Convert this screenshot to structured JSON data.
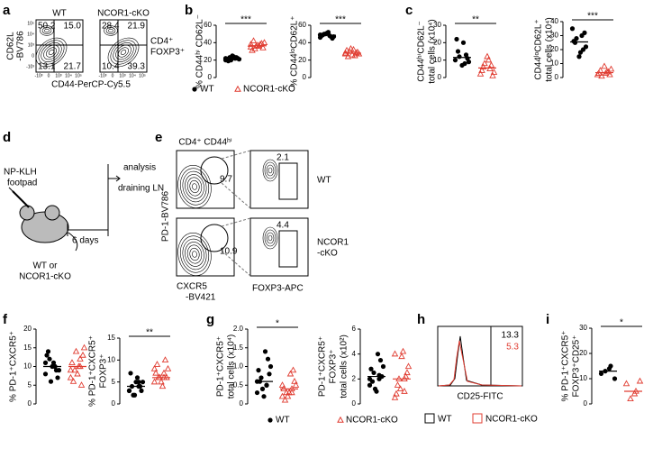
{
  "panel_labels": [
    "a",
    "b",
    "c",
    "d",
    "e",
    "f",
    "g",
    "h",
    "i"
  ],
  "groups": [
    "WT",
    "NCOR1-cKO"
  ],
  "colors": [
    "#000000",
    "#e03c31"
  ],
  "a": {
    "columns": [
      "WT",
      "NCOR1-cKO"
    ],
    "y_label": [
      "CD62L",
      "-BV786"
    ],
    "x_label": "CD44-PerCP-Cy5.5",
    "gate_label": [
      "CD4⁺",
      "FOXP3⁺"
    ],
    "quadrants": [
      [
        "50.2",
        "15.0",
        "13.1",
        "21.7"
      ],
      [
        "28.4",
        "21.9",
        "10.4",
        "39.3"
      ]
    ],
    "axis_ticks": [
      "10⁵",
      "10⁴",
      "10³",
      "0",
      "-10³"
    ]
  },
  "d": {
    "injection": [
      "NP-KLH",
      "footpad"
    ],
    "analysis": [
      "analysis",
      "draining LN"
    ],
    "interval": "6 days",
    "mice": [
      "WT or",
      "NCOR1-cKO"
    ]
  },
  "e": {
    "header": "CD4⁺ CD44ʰⁱ",
    "gates": [
      [
        "9.7",
        "2.1"
      ],
      [
        "10.9",
        "4.4"
      ]
    ],
    "rows": [
      [
        "WT"
      ],
      [
        "NCOR1",
        "-cKO"
      ]
    ],
    "y_label": "PD-1-BV786",
    "x_label_left": [
      "CXCR5",
      "-BV421"
    ],
    "x_label_right": "FOXP3-APC"
  },
  "h": {
    "values": [
      "13.3",
      "5.3"
    ],
    "x_label": "CD25-FITC"
  },
  "dotplots": [
    {
      "y_label": [
        "% CD44ʰⁱ CD62L⁻"
      ],
      "ylim": [
        0,
        60
      ],
      "yticks": [
        0,
        20,
        40,
        60
      ],
      "significance": "***",
      "series": [
        {
          "values": [
            20,
            22,
            23,
            21,
            24,
            19,
            22,
            25,
            21,
            23,
            20,
            22
          ]
        },
        {
          "values": [
            35,
            38,
            33,
            40,
            36,
            42,
            34,
            37,
            31,
            39,
            36,
            38
          ]
        }
      ]
    },
    {
      "y_label": [
        "% CD44ˡᵒCD62L⁺"
      ],
      "ylim": [
        0,
        60
      ],
      "yticks": [
        0,
        20,
        40,
        60
      ],
      "significance": "***",
      "series": [
        {
          "values": [
            46,
            48,
            50,
            47,
            52,
            49,
            45,
            51,
            48,
            47,
            50,
            49
          ]
        },
        {
          "values": [
            28,
            25,
            30,
            27,
            32,
            24,
            29,
            26,
            31,
            28,
            33,
            27
          ]
        }
      ]
    },
    {
      "y_label": [
        "CD44ʰⁱCD62L⁻",
        "total cells (x10⁴)"
      ],
      "ylim": [
        0,
        30
      ],
      "yticks": [
        0,
        10,
        20,
        30
      ],
      "significance": "**",
      "series": [
        {
          "values": [
            10,
            8,
            12,
            9,
            20,
            15,
            11,
            7,
            22,
            13
          ]
        },
        {
          "values": [
            2,
            5,
            8,
            3,
            10,
            6,
            1,
            12,
            4,
            7
          ]
        }
      ]
    },
    {
      "y_label": [
        "CD44ˡᵒCD62L⁺",
        "total cells (x10⁴)"
      ],
      "ylim": [
        0,
        40
      ],
      "yticks": [
        0,
        10,
        20,
        30,
        40
      ],
      "significance": "***",
      "series": [
        {
          "values": [
            35,
            30,
            28,
            22,
            18,
            25,
            32,
            15,
            26,
            20
          ]
        },
        {
          "values": [
            2,
            4,
            1,
            6,
            3,
            5,
            2,
            8,
            3,
            4
          ]
        }
      ]
    },
    {
      "y_label": [
        "% PD-1⁺CXCR5⁺"
      ],
      "ylim": [
        0,
        20
      ],
      "yticks": [
        0,
        5,
        10,
        15,
        20
      ],
      "series": [
        {
          "values": [
            8,
            10,
            12,
            9,
            11,
            14,
            7,
            10,
            13,
            9,
            6,
            11,
            10
          ]
        },
        {
          "values": [
            7,
            12,
            9,
            15,
            10,
            6,
            13,
            8,
            11,
            5,
            14,
            9,
            10
          ]
        }
      ]
    },
    {
      "y_label": [
        "% PD-1⁺CXCR5⁺",
        "FOXP3⁺"
      ],
      "ylim": [
        0,
        15
      ],
      "yticks": [
        0,
        5,
        10,
        15
      ],
      "significance": "**",
      "series": [
        {
          "values": [
            3,
            4,
            2,
            5,
            6,
            4,
            3,
            5,
            7,
            4,
            2,
            3,
            5
          ]
        },
        {
          "values": [
            5,
            7,
            6,
            8,
            4,
            9,
            6,
            5,
            7,
            10,
            6,
            8,
            6
          ]
        }
      ]
    },
    {
      "y_label": [
        "PD-1⁺CXCR5⁺",
        "total cells (x10⁴)"
      ],
      "ylim": [
        0,
        2
      ],
      "yticks": [
        0,
        0.5,
        {
          "value": 1,
          "label": "1.0"
        },
        1.5,
        {
          "value": 2,
          "label": "2.0"
        }
      ],
      "significance": "*",
      "series": [
        {
          "values": [
            0.3,
            0.5,
            0.7,
            1.0,
            1.4,
            0.6,
            0.8,
            0.2,
            0.9,
            1.2,
            0.4,
            0.6,
            0.5
          ]
        },
        {
          "values": [
            0.2,
            0.4,
            0.3,
            0.5,
            0.8,
            0.1,
            0.6,
            0.3,
            0.4,
            0.9,
            0.2,
            0.5,
            0.3
          ]
        }
      ]
    },
    {
      "y_label": [
        "PD-1⁺CXCR5⁺",
        "FOXP3⁺",
        "total cells (x10²)"
      ],
      "ylim": [
        0,
        6
      ],
      "yticks": [
        0,
        2,
        4,
        6
      ],
      "series": [
        {
          "values": [
            1.5,
            2,
            2.5,
            3,
            4,
            1.8,
            2.2,
            1,
            2.8,
            3.5,
            1.2,
            2,
            2.3
          ]
        },
        {
          "values": [
            0.5,
            1,
            2,
            3,
            4.2,
            1.5,
            2.5,
            3.8,
            0.8,
            2.2,
            1.2,
            4,
            2
          ]
        }
      ]
    },
    {
      "y_label": [
        "% PD-1⁺CXCR5⁺",
        "FOXP3⁺CD25⁺"
      ],
      "ylim": [
        0,
        30
      ],
      "yticks": [
        0,
        10,
        20,
        30
      ],
      "significance": "*",
      "series": [
        {
          "values": [
            12,
            15,
            13,
            10,
            14
          ]
        },
        {
          "values": [
            8,
            5,
            2,
            9,
            4
          ]
        }
      ]
    }
  ]
}
